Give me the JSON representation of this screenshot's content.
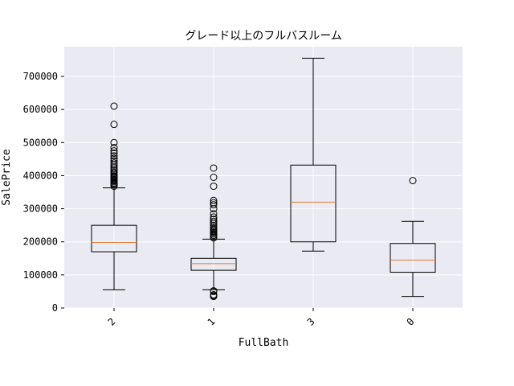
{
  "chart_data": {
    "type": "box",
    "title": "グレード以上のフルバスルーム",
    "xlabel": "FullBath",
    "ylabel": "SalePrice",
    "ylim": [
      0,
      790000
    ],
    "yticks": [
      0,
      100000,
      200000,
      300000,
      400000,
      500000,
      600000,
      700000
    ],
    "ytick_labels": [
      "0",
      "100000",
      "200000",
      "300000",
      "400000",
      "500000",
      "600000",
      "700000"
    ],
    "categories": [
      "2",
      "1",
      "3",
      "0"
    ],
    "grid": true,
    "colors": {
      "background": "#eaeaf2",
      "grid": "#ffffff",
      "box": "#000000",
      "median": "#e07b39"
    },
    "boxes": [
      {
        "category": "2",
        "whisker_low": 55000,
        "q1": 170000,
        "median": 198000,
        "q3": 250000,
        "whisker_high": 363000,
        "outliers": [
          368000,
          372000,
          375000,
          378000,
          382000,
          385000,
          388000,
          392000,
          395000,
          398000,
          402000,
          406000,
          410000,
          415000,
          420000,
          425000,
          432000,
          438000,
          445000,
          452000,
          460000,
          468000,
          475000,
          485000,
          500000,
          555000,
          610000
        ]
      },
      {
        "category": "1",
        "whisker_low": 55000,
        "q1": 114000,
        "median": 134000,
        "q3": 150000,
        "whisker_high": 208000,
        "outliers": [
          35000,
          37000,
          40000,
          50000,
          52000,
          212000,
          216000,
          220000,
          224000,
          228000,
          232000,
          236000,
          240000,
          245000,
          250000,
          256000,
          262000,
          268000,
          275000,
          285000,
          300000,
          312000,
          318000,
          325000,
          368000,
          395000,
          423000
        ]
      },
      {
        "category": "3",
        "whisker_low": 172000,
        "q1": 200000,
        "median": 320000,
        "q3": 432000,
        "whisker_high": 755000,
        "outliers": []
      },
      {
        "category": "0",
        "whisker_low": 35000,
        "q1": 108000,
        "median": 145000,
        "q3": 195000,
        "whisker_high": 262000,
        "outliers": [
          385000
        ]
      }
    ]
  }
}
